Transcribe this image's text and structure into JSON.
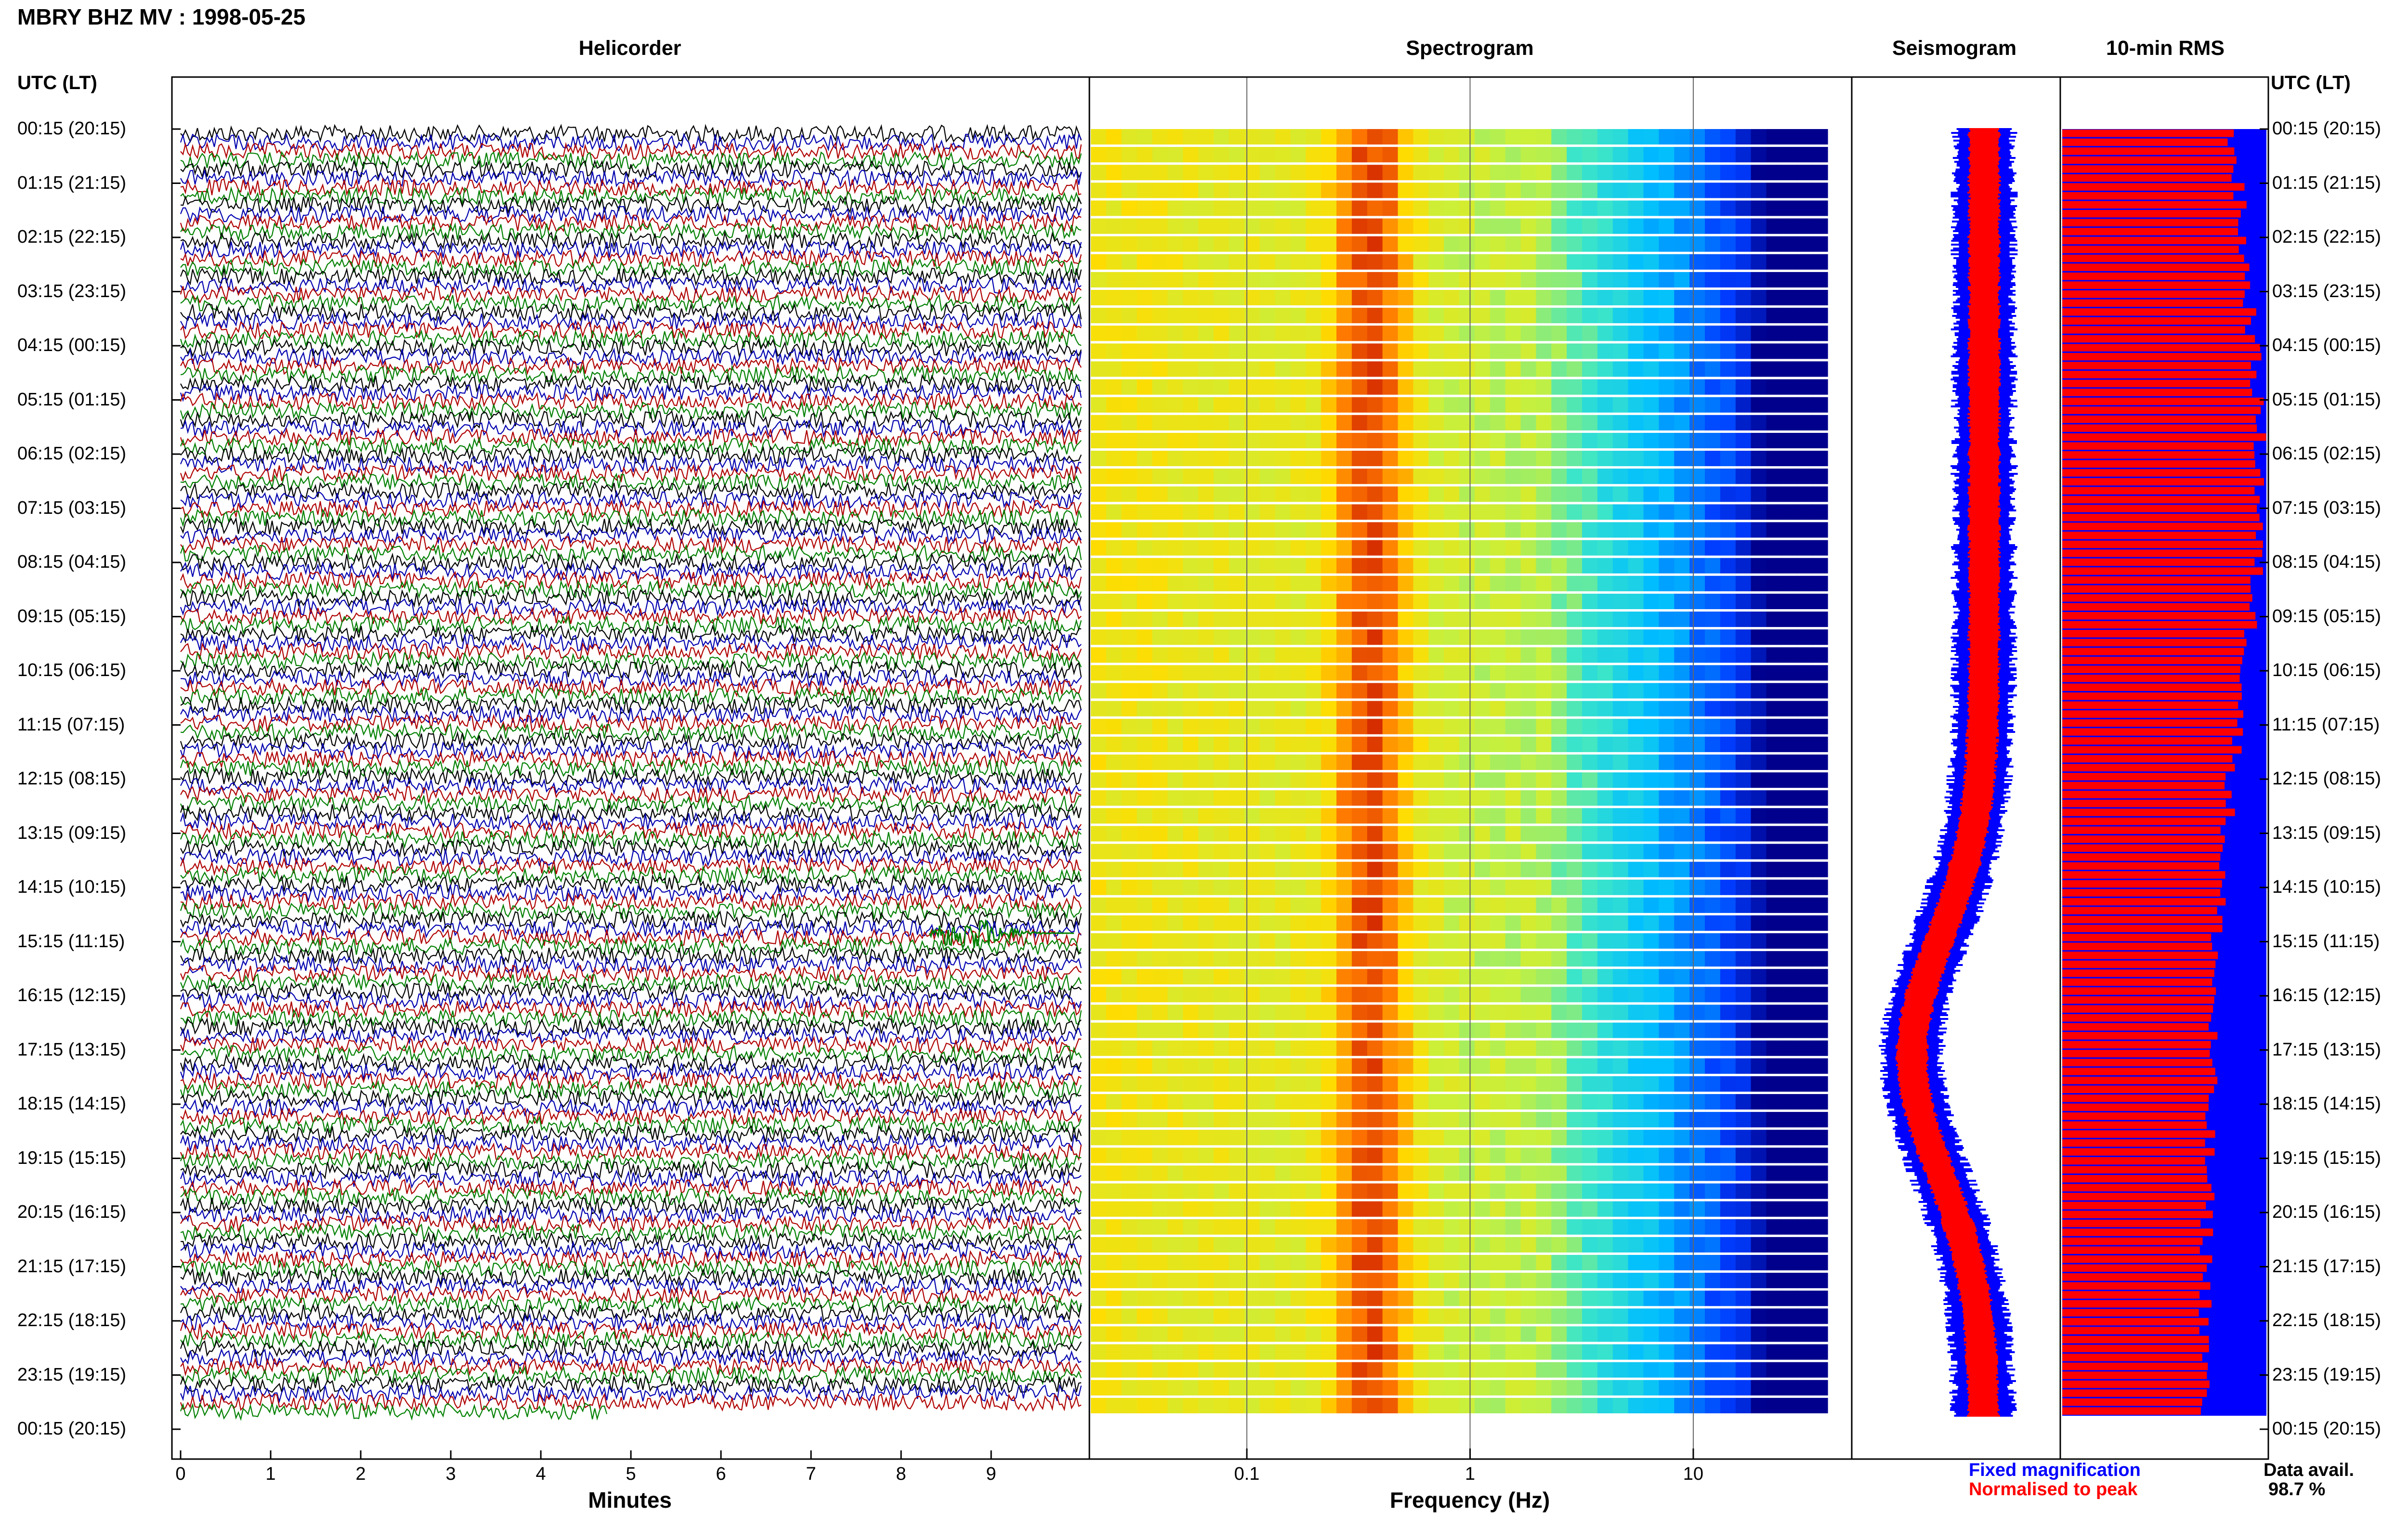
{
  "header": {
    "title": "MBRY BHZ MV : 1998-05-25"
  },
  "panels": {
    "helicorder": "Helicorder",
    "spectrogram": "Spectrogram",
    "seismogram": "Seismogram",
    "rms": "10-min RMS"
  },
  "left_axis": {
    "label": "UTC (LT)"
  },
  "right_axis": {
    "label": "UTC (LT)"
  },
  "legend": {
    "fixed": "Fixed magnification",
    "normalised": "Normalised to peak",
    "fixed_color": "#0000ff",
    "normalised_color": "#ff0000"
  },
  "data_avail": {
    "label": "Data avail.",
    "value": "98.7 %"
  },
  "chart_data": [
    {
      "type": "line",
      "title": "Helicorder",
      "xlabel": "Minutes",
      "x_ticks": [
        "0",
        "1",
        "2",
        "3",
        "4",
        "5",
        "6",
        "7",
        "8",
        "9"
      ],
      "xlim": [
        0,
        10
      ],
      "row_minutes": 10,
      "trace_colors": [
        "#000000",
        "#0000b0",
        "#b00000",
        "#008000"
      ],
      "time_labels": [
        "00:15 (20:15)",
        "01:15 (21:15)",
        "02:15 (22:15)",
        "03:15 (23:15)",
        "04:15 (00:15)",
        "05:15 (01:15)",
        "06:15 (02:15)",
        "07:15 (03:15)",
        "08:15 (04:15)",
        "09:15 (05:15)",
        "10:15 (06:15)",
        "11:15 (07:15)",
        "12:15 (08:15)",
        "13:15 (09:15)",
        "14:15 (10:15)",
        "15:15 (11:15)",
        "16:15 (12:15)",
        "17:15 (13:15)",
        "18:15 (14:15)",
        "19:15 (15:15)",
        "20:15 (16:15)",
        "21:15 (17:15)",
        "22:15 (18:15)",
        "23:15 (19:15)",
        "00:15 (20:15)"
      ]
    },
    {
      "type": "heatmap",
      "title": "Spectrogram",
      "xlabel": "Frequency (Hz)",
      "x_scale": "log",
      "xlim": [
        0.02,
        40
      ],
      "x_ticks": [
        "0.1",
        "1",
        "10"
      ],
      "peak_band_hz": [
        0.25,
        0.5
      ]
    },
    {
      "type": "line",
      "title": "Seismogram",
      "series": [
        {
          "name": "Fixed magnification",
          "color": "#0000ff"
        },
        {
          "name": "Normalised to peak",
          "color": "#ff0000"
        }
      ]
    },
    {
      "type": "bar",
      "title": "10-min RMS",
      "series": [
        {
          "name": "Fixed magnification",
          "color": "#0000ff"
        },
        {
          "name": "Normalised to peak",
          "color": "#ff0000"
        }
      ]
    }
  ]
}
